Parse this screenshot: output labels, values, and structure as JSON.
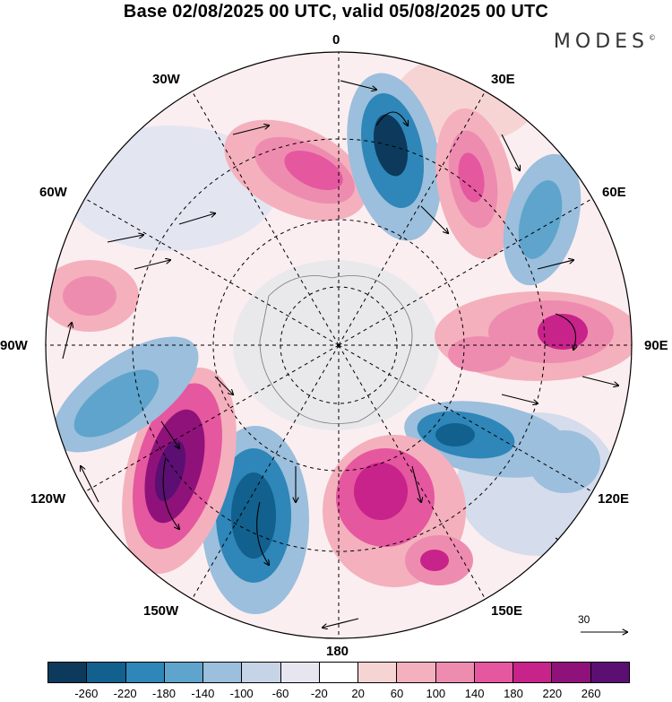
{
  "title": "Base 02/08/2025 00 UTC, valid 05/08/2025 00 UTC",
  "brand": "MODES",
  "brand_mark": "©",
  "longitude_labels": {
    "lon_0": "0",
    "lon_30e": "30E",
    "lon_60e": "60E",
    "lon_90e": "90E",
    "lon_120e": "120E",
    "lon_150e": "150E",
    "lon_180": "180",
    "lon_150w": "150W",
    "lon_120w": "120W",
    "lon_90w": "90W",
    "lon_60w": "60W",
    "lon_30w": "30W"
  },
  "vector_scale_label": "30",
  "colorbar": {
    "colors": [
      "#0d3a5c",
      "#12608e",
      "#2f86b8",
      "#5ea4cc",
      "#9bbfdc",
      "#c7d3e6",
      "#e7e6f0",
      "#ffffff",
      "#f7d4d4",
      "#f4b0bd",
      "#ee8cb0",
      "#e5579f",
      "#c8238a",
      "#8f127a",
      "#5b0f72"
    ],
    "tick_labels": [
      "-260",
      "-220",
      "-180",
      "-140",
      "-100",
      "-60",
      "-20",
      "20",
      "60",
      "100",
      "140",
      "180",
      "220",
      "260"
    ]
  }
}
